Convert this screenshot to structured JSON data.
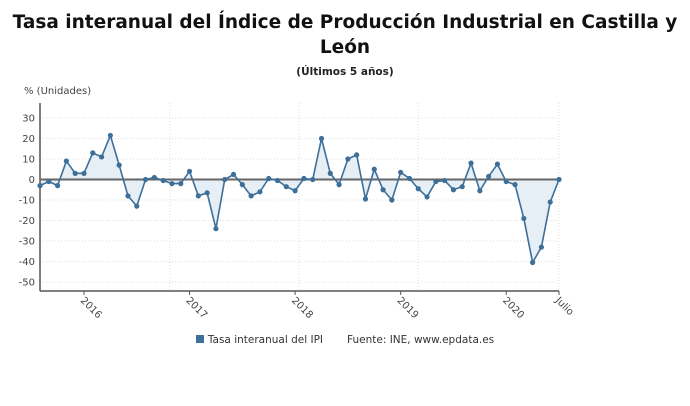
{
  "chart_data": {
    "type": "area",
    "title": "Tasa interanual del Índice de Producción Industrial en Castilla y León",
    "subtitle": "(Últimos 5 años)",
    "ylabel": "% (Unidades)",
    "xlabel": "",
    "ylim": [
      -55,
      37
    ],
    "yticks": [
      30,
      20,
      10,
      0,
      -10,
      -20,
      -30,
      -40,
      -50
    ],
    "xtick_labels": [
      {
        "label": "2016",
        "x": "2016-01"
      },
      {
        "label": "2017",
        "x": "2017-01"
      },
      {
        "label": "2018",
        "x": "2018-01"
      },
      {
        "label": "2019",
        "x": "2019-01"
      },
      {
        "label": "2020",
        "x": "2020-01"
      },
      {
        "label": "Julio",
        "x": "2020-07"
      }
    ],
    "grid": true,
    "legend_position": "bottom",
    "series": [
      {
        "name": "Tasa interanual del IPI",
        "color": "#3d6f98",
        "fill_color": "#e6eef6",
        "x": [
          "2015-08",
          "2015-09",
          "2015-10",
          "2015-11",
          "2015-12",
          "2016-01",
          "2016-02",
          "2016-03",
          "2016-04",
          "2016-05",
          "2016-06",
          "2016-07",
          "2016-08",
          "2016-09",
          "2016-10",
          "2016-11",
          "2016-12",
          "2017-01",
          "2017-02",
          "2017-03",
          "2017-04",
          "2017-05",
          "2017-06",
          "2017-07",
          "2017-08",
          "2017-09",
          "2017-10",
          "2017-11",
          "2017-12",
          "2018-01",
          "2018-02",
          "2018-03",
          "2018-04",
          "2018-05",
          "2018-06",
          "2018-07",
          "2018-08",
          "2018-09",
          "2018-10",
          "2018-11",
          "2018-12",
          "2019-01",
          "2019-02",
          "2019-03",
          "2019-04",
          "2019-05",
          "2019-06",
          "2019-07",
          "2019-08",
          "2019-09",
          "2019-10",
          "2019-11",
          "2019-12",
          "2020-01",
          "2020-02",
          "2020-03",
          "2020-04",
          "2020-05",
          "2020-06",
          "2020-07"
        ],
        "values": [
          -3,
          -1,
          -3,
          9,
          3,
          3,
          13,
          11,
          21.5,
          7,
          -8,
          -13,
          0,
          1,
          -0.5,
          -2,
          -2,
          4,
          -8,
          -6.5,
          -24,
          0,
          2.5,
          -2.5,
          -8,
          -6,
          0.5,
          -0.5,
          -3.5,
          -5.5,
          0.5,
          0,
          20,
          3,
          -2.5,
          10,
          12,
          -9.5,
          5,
          -5,
          -10,
          3.5,
          0.5,
          -4.5,
          -8.5,
          -1,
          -0.5,
          -5,
          -3.5,
          8,
          -5.5,
          1.5,
          7.5,
          -1,
          -2.5,
          -19,
          -40.5,
          -33,
          -11,
          0
        ]
      }
    ],
    "source": "Fuente: INE, www.epdata.es"
  }
}
